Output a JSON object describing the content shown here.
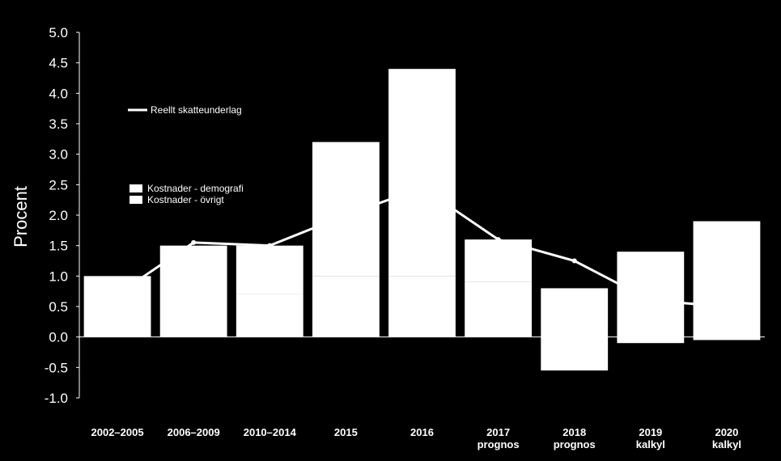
{
  "chart_data": {
    "type": "bar",
    "ylabel": "Procent",
    "ylim": [
      -1.0,
      5.0
    ],
    "ytick_step": 0.5,
    "grid": false,
    "categories": [
      [
        "2002–2005"
      ],
      [
        "2006–2009"
      ],
      [
        "2010–2014"
      ],
      [
        "2015"
      ],
      [
        "2016"
      ],
      [
        "2017",
        "prognos"
      ],
      [
        "2018",
        "prognos"
      ],
      [
        "2019",
        "kalkyl"
      ],
      [
        "2020",
        "kalkyl"
      ]
    ],
    "series": [
      {
        "name": "Kostnader - demografi",
        "kind": "bar",
        "values": [
          0.5,
          0.5,
          0.7,
          1.0,
          1.0,
          0.9,
          0.8,
          1.4,
          1.9
        ]
      },
      {
        "name": "Kostnader - övrigt",
        "kind": "bar",
        "values": [
          0.5,
          1.0,
          0.8,
          2.2,
          3.4,
          0.7,
          -0.55,
          -0.1,
          -0.05
        ]
      },
      {
        "name": "Reellt skatteunderlag",
        "kind": "line",
        "values": [
          0.7,
          1.55,
          1.5,
          2.0,
          2.45,
          1.6,
          1.25,
          0.6,
          0.5
        ]
      }
    ],
    "legend": {
      "line_position": "upper-left",
      "bar_position": "left"
    },
    "colors": {
      "background": "#000000",
      "bars": "#ffffff",
      "line": "#ffffff",
      "text": "#ffffff",
      "axis": "#ffffff"
    }
  }
}
